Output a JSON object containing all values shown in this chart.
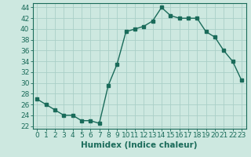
{
  "x": [
    0,
    1,
    2,
    3,
    4,
    5,
    6,
    7,
    8,
    9,
    10,
    11,
    12,
    13,
    14,
    15,
    16,
    17,
    18,
    19,
    20,
    21,
    22,
    23
  ],
  "y": [
    27,
    26,
    25,
    24,
    24,
    23,
    23,
    22.5,
    29.5,
    33.5,
    39.5,
    40,
    40.5,
    41.5,
    44,
    42.5,
    42,
    42,
    42,
    39.5,
    38.5,
    36,
    34,
    30.5
  ],
  "line_color": "#1a6b5a",
  "marker": "s",
  "marker_size": 2.5,
  "bg_color": "#cde8e0",
  "grid_color": "#aacfc7",
  "xlabel": "Humidex (Indice chaleur)",
  "xlim": [
    -0.5,
    23.5
  ],
  "ylim": [
    21.5,
    44.8
  ],
  "yticks": [
    22,
    24,
    26,
    28,
    30,
    32,
    34,
    36,
    38,
    40,
    42,
    44
  ],
  "xticks": [
    0,
    1,
    2,
    3,
    4,
    5,
    6,
    7,
    8,
    9,
    10,
    11,
    12,
    13,
    14,
    15,
    16,
    17,
    18,
    19,
    20,
    21,
    22,
    23
  ],
  "tick_label_fontsize": 6.5,
  "xlabel_fontsize": 7.5,
  "line_width": 1.0
}
